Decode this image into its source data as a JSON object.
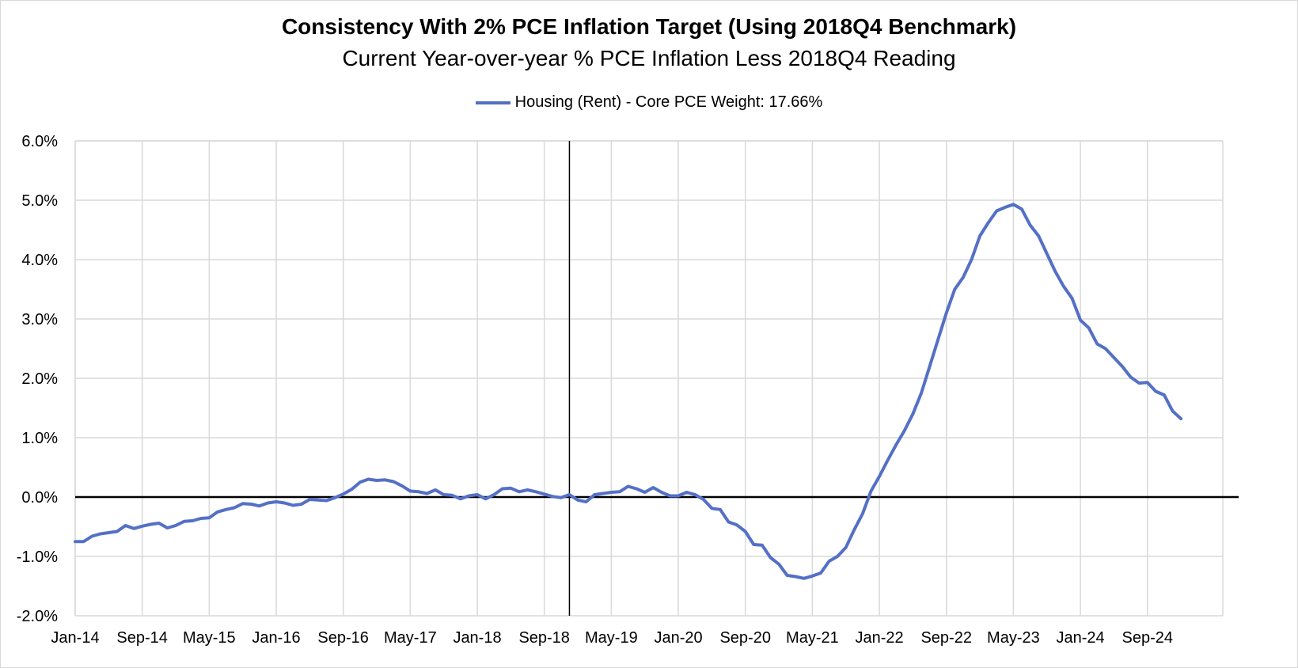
{
  "colors": {
    "series": "#5470C6",
    "grid": "#D9D9D9",
    "axis": "#000000"
  },
  "chart_data": {
    "type": "line",
    "title": "Consistency With 2% PCE Inflation Target (Using 2018Q4 Benchmark)",
    "subtitle": "Current Year-over-year % PCE Inflation Less 2018Q4 Reading",
    "legend_position": "top-center",
    "grid": true,
    "ylim": [
      -2.0,
      6.0
    ],
    "yticks": [
      "6.0%",
      "5.0%",
      "4.0%",
      "3.0%",
      "2.0%",
      "1.0%",
      "0.0%",
      "-1.0%",
      "-2.0%"
    ],
    "ytick_values": [
      6,
      5,
      4,
      3,
      2,
      1,
      0,
      -1,
      -2
    ],
    "xlim": [
      "Jan-14",
      "Jun-25"
    ],
    "xticks": [
      "Jan-14",
      "Sep-14",
      "May-15",
      "Jan-16",
      "Sep-16",
      "May-17",
      "Jan-18",
      "Sep-18",
      "May-19",
      "Jan-20",
      "Sep-20",
      "May-21",
      "Jan-22",
      "Sep-22",
      "May-23",
      "Jan-24",
      "Sep-24"
    ],
    "reference_line_x": "Dec-18",
    "series": [
      {
        "name": "Housing (Rent) - Core PCE Weight: 17.66%",
        "start": "Jan-14",
        "frequency": "monthly",
        "values": [
          -0.75,
          -0.75,
          -0.66,
          -0.62,
          -0.6,
          -0.58,
          -0.48,
          -0.53,
          -0.49,
          -0.46,
          -0.44,
          -0.52,
          -0.48,
          -0.41,
          -0.4,
          -0.36,
          -0.35,
          -0.25,
          -0.21,
          -0.18,
          -0.11,
          -0.12,
          -0.15,
          -0.1,
          -0.08,
          -0.1,
          -0.14,
          -0.12,
          -0.04,
          -0.05,
          -0.06,
          -0.01,
          0.05,
          0.13,
          0.25,
          0.3,
          0.28,
          0.29,
          0.26,
          0.19,
          0.1,
          0.09,
          0.06,
          0.12,
          0.04,
          0.03,
          -0.03,
          0.02,
          0.04,
          -0.03,
          0.04,
          0.14,
          0.15,
          0.09,
          0.12,
          0.09,
          0.05,
          0.01,
          -0.01,
          0.04,
          -0.05,
          -0.08,
          0.04,
          0.06,
          0.08,
          0.09,
          0.18,
          0.14,
          0.08,
          0.16,
          0.08,
          0.02,
          0.02,
          0.08,
          0.04,
          -0.04,
          -0.19,
          -0.21,
          -0.42,
          -0.47,
          -0.58,
          -0.8,
          -0.81,
          -1.02,
          -1.13,
          -1.32,
          -1.34,
          -1.37,
          -1.33,
          -1.28,
          -1.08,
          -1.0,
          -0.85,
          -0.55,
          -0.28,
          0.1,
          0.35,
          0.62,
          0.88,
          1.12,
          1.4,
          1.75,
          2.2,
          2.65,
          3.1,
          3.5,
          3.7,
          4.0,
          4.4,
          4.62,
          4.82,
          4.88,
          4.93,
          4.85,
          4.58,
          4.4,
          4.1,
          3.8,
          3.55,
          3.35,
          2.98,
          2.85,
          2.58,
          2.5,
          2.35,
          2.2,
          2.02,
          1.92,
          1.93,
          1.78,
          1.72,
          1.45,
          1.32
        ]
      }
    ]
  }
}
